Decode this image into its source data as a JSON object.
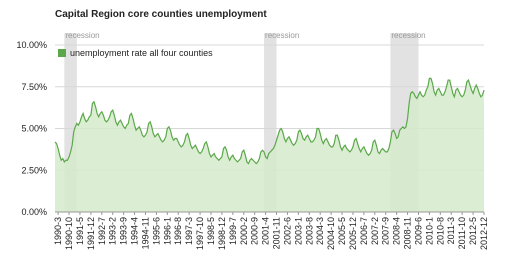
{
  "chart_data": {
    "type": "area",
    "title": "Capital Region core counties unemployment",
    "categories": [
      null,
      null,
      "1990-3",
      null,
      null,
      null,
      null,
      null,
      null,
      "1990-10",
      null,
      null,
      null,
      null,
      null,
      null,
      "1991-5",
      null,
      null,
      null,
      null,
      null,
      null,
      "1991-12",
      null,
      null,
      null,
      null,
      null,
      null,
      "1992-7",
      null,
      null,
      null,
      null,
      null,
      null,
      "1993-2",
      null,
      null,
      null,
      null,
      null,
      null,
      "1993-9",
      null,
      null,
      null,
      null,
      null,
      null,
      "1994-4",
      null,
      null,
      null,
      null,
      null,
      null,
      "1994-11",
      null,
      null,
      null,
      null,
      null,
      null,
      "1995-6",
      null,
      null,
      null,
      null,
      null,
      null,
      "1996-1",
      null,
      null,
      null,
      null,
      null,
      null,
      "1996-8",
      null,
      null,
      null,
      null,
      null,
      null,
      "1997-3",
      null,
      null,
      null,
      null,
      null,
      null,
      "1997-10",
      null,
      null,
      null,
      null,
      null,
      null,
      "1998-5",
      null,
      null,
      null,
      null,
      null,
      null,
      "1998-12",
      null,
      null,
      null,
      null,
      null,
      null,
      "1999-7",
      null,
      null,
      null,
      null,
      null,
      null,
      "2000-2",
      null,
      null,
      null,
      null,
      null,
      null,
      "2000-9",
      null,
      null,
      null,
      null,
      null,
      null,
      "2001-4",
      null,
      null,
      null,
      null,
      null,
      null,
      "2001-11",
      null,
      null,
      null,
      null,
      null,
      null,
      "2002-6",
      null,
      null,
      null,
      null,
      null,
      null,
      "2003-1",
      null,
      null,
      null,
      null,
      null,
      null,
      "2003-8",
      null,
      null,
      null,
      null,
      null,
      null,
      "2004-3",
      null,
      null,
      null,
      null,
      null,
      null,
      "2004-10",
      null,
      null,
      null,
      null,
      null,
      null,
      "2005-5",
      null,
      null,
      null,
      null,
      null,
      null,
      "2005-12",
      null,
      null,
      null,
      null,
      null,
      null,
      "2006-7",
      null,
      null,
      null,
      null,
      null,
      null,
      "2007-2",
      null,
      null,
      null,
      null,
      null,
      null,
      "2007-9",
      null,
      null,
      null,
      null,
      null,
      null,
      "2008-4",
      null,
      null,
      null,
      null,
      null,
      null,
      "2008-11",
      null,
      null,
      null,
      null,
      null,
      null,
      "2009-6",
      null,
      null,
      null,
      null,
      null,
      null,
      "2010-1",
      null,
      null,
      null,
      null,
      null,
      null,
      "2010-8",
      null,
      null,
      null,
      null,
      null,
      null,
      "2011-3",
      null,
      null,
      null,
      null,
      null,
      null,
      "2011-10",
      null,
      null,
      null,
      null,
      null,
      null,
      "2012-5",
      null,
      null,
      null,
      null,
      null,
      null,
      "2012-12"
    ],
    "series": [
      {
        "name": "unemployment rate all four counties",
        "color": "#5ba84a",
        "fill": "#d5ebcb",
        "values": [
          4.2,
          4.1,
          3.8,
          3.4,
          3.1,
          3.2,
          3.0,
          3.1,
          3.1,
          3.3,
          3.6,
          4.0,
          4.8,
          5.1,
          5.3,
          5.2,
          5.4,
          5.7,
          5.9,
          5.6,
          5.4,
          5.5,
          5.7,
          5.8,
          6.5,
          6.6,
          6.3,
          5.9,
          5.7,
          5.9,
          6.0,
          5.8,
          5.5,
          5.4,
          5.5,
          5.7,
          6.0,
          6.1,
          5.8,
          5.4,
          5.2,
          5.4,
          5.5,
          5.3,
          5.1,
          5.0,
          5.2,
          5.3,
          5.8,
          5.9,
          5.6,
          5.2,
          4.9,
          5.0,
          5.1,
          4.9,
          4.6,
          4.5,
          4.6,
          4.8,
          5.3,
          5.4,
          5.1,
          4.7,
          4.5,
          4.6,
          4.7,
          4.5,
          4.3,
          4.2,
          4.3,
          4.5,
          5.0,
          5.1,
          4.9,
          4.5,
          4.3,
          4.4,
          4.4,
          4.2,
          4.0,
          3.9,
          4.0,
          4.2,
          4.6,
          4.7,
          4.4,
          4.0,
          3.8,
          3.9,
          4.0,
          3.8,
          3.6,
          3.5,
          3.6,
          3.8,
          4.1,
          4.2,
          3.9,
          3.5,
          3.3,
          3.4,
          3.5,
          3.3,
          3.2,
          3.1,
          3.2,
          3.3,
          3.8,
          3.9,
          3.7,
          3.3,
          3.1,
          3.3,
          3.4,
          3.2,
          3.1,
          3.0,
          3.1,
          3.2,
          3.6,
          3.7,
          3.4,
          3.0,
          2.9,
          3.1,
          3.2,
          3.1,
          3.0,
          2.9,
          3.0,
          3.2,
          3.6,
          3.7,
          3.6,
          3.3,
          3.2,
          3.5,
          3.6,
          3.7,
          3.8,
          4.0,
          4.3,
          4.6,
          4.9,
          5.0,
          4.8,
          4.4,
          4.2,
          4.4,
          4.5,
          4.3,
          4.1,
          4.0,
          4.1,
          4.3,
          4.8,
          4.9,
          4.7,
          4.4,
          4.3,
          4.5,
          4.6,
          4.4,
          4.2,
          4.2,
          4.3,
          4.5,
          5.0,
          5.0,
          4.7,
          4.3,
          4.1,
          4.3,
          4.4,
          4.2,
          4.0,
          3.9,
          3.9,
          4.1,
          4.6,
          4.6,
          4.3,
          3.9,
          3.7,
          3.9,
          4.0,
          3.8,
          3.7,
          3.6,
          3.7,
          3.9,
          4.3,
          4.4,
          4.1,
          3.8,
          3.6,
          3.8,
          3.9,
          3.7,
          3.5,
          3.4,
          3.5,
          3.7,
          4.2,
          4.3,
          4.0,
          3.6,
          3.5,
          3.7,
          3.8,
          3.7,
          3.6,
          3.6,
          3.8,
          4.2,
          4.8,
          4.9,
          4.7,
          4.4,
          4.5,
          4.9,
          5.0,
          5.1,
          5.0,
          5.1,
          5.6,
          6.5,
          7.1,
          7.2,
          7.1,
          6.9,
          6.8,
          7.0,
          7.2,
          7.0,
          6.9,
          7.0,
          7.3,
          7.5,
          8.0,
          8.0,
          7.7,
          7.2,
          7.0,
          7.3,
          7.4,
          7.2,
          7.0,
          7.0,
          7.2,
          7.5,
          7.9,
          7.9,
          7.5,
          7.1,
          6.9,
          7.3,
          7.4,
          7.2,
          7.0,
          6.9,
          7.0,
          7.3,
          7.8,
          7.9,
          7.6,
          7.3,
          7.1,
          7.4,
          7.6,
          7.4,
          7.1,
          6.9,
          7.0,
          7.3
        ]
      }
    ],
    "ylim": [
      0,
      10
    ],
    "yticks": [
      {
        "value": 0,
        "label": "0.00%"
      },
      {
        "value": 2.5,
        "label": "2.50%"
      },
      {
        "value": 5,
        "label": "5.00%"
      },
      {
        "value": 7.5,
        "label": "7.50%"
      },
      {
        "value": 10,
        "label": "10.00%"
      }
    ],
    "grid": true,
    "legend": "top-left",
    "shade_color": "#e2e2e2",
    "shaded_ranges": [
      {
        "label": "recession",
        "from": 6,
        "to": 14
      },
      {
        "label": "recession",
        "from": 134,
        "to": 142
      },
      {
        "label": "recession",
        "from": 215,
        "to": 233
      }
    ]
  }
}
